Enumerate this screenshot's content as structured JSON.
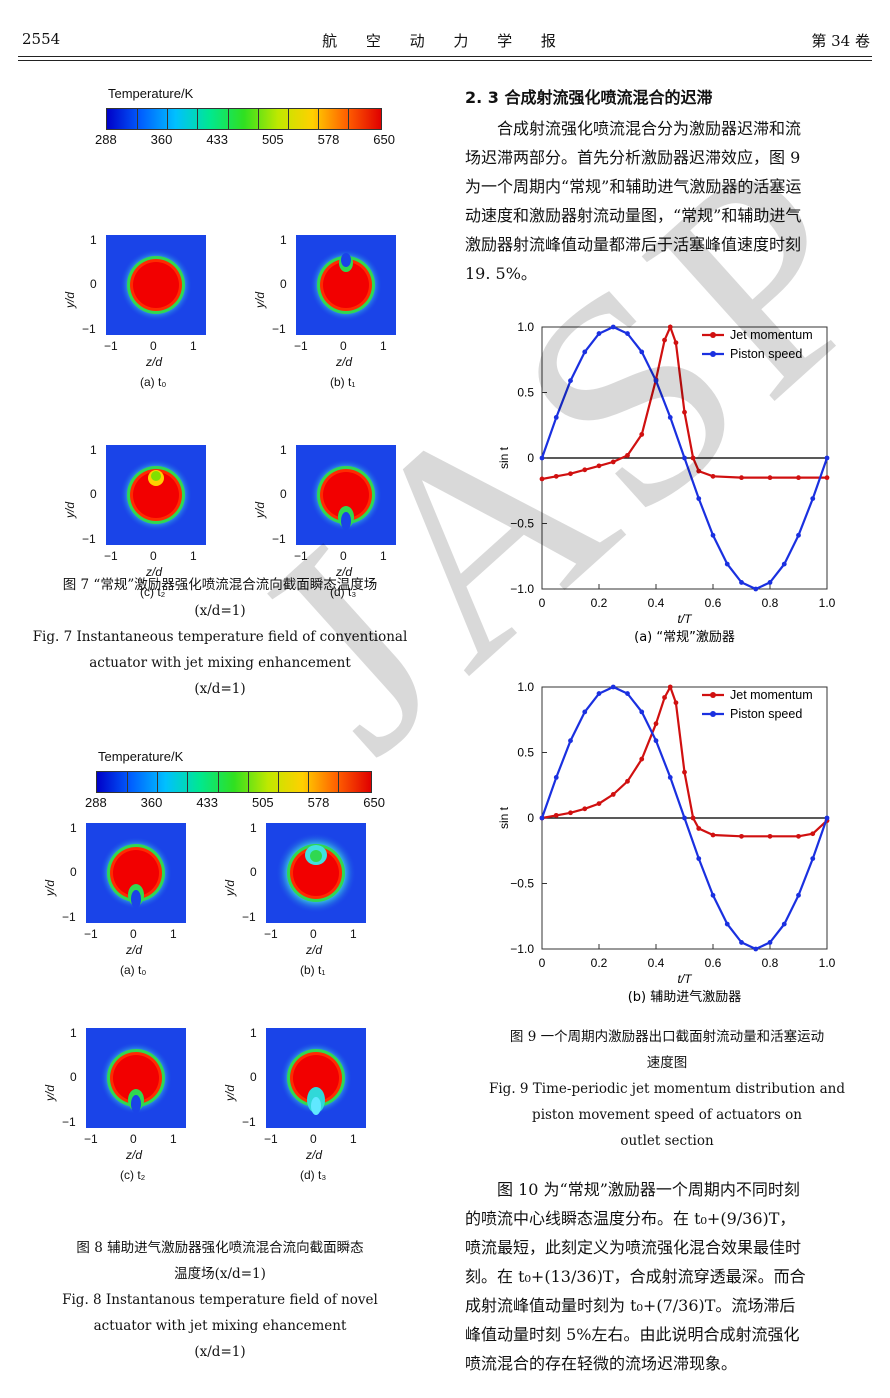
{
  "header": {
    "page_number": "2554",
    "journal": "航 空 动 力 学 报",
    "volume": "第 34 卷"
  },
  "colorbar": {
    "title": "Temperature/K",
    "ticks": [
      "288",
      "360",
      "433",
      "505",
      "578",
      "650"
    ]
  },
  "axis": {
    "y_label": "y/d",
    "x_label": "z/d",
    "ticks": [
      "−1",
      "0",
      "1"
    ]
  },
  "fig7": {
    "panels": [
      "(a) t₀",
      "(b) t₁",
      "(c) t₂",
      "(d) t₃"
    ],
    "caption_cn_1": "图 7 “常规”激励器强化喷流混合流向截面瞬态温度场",
    "caption_cn_2": "(x/d=1)",
    "caption_en_1": "Fig. 7  Instantaneous temperature field of conventional",
    "caption_en_2": "actuator with jet mixing enhancement",
    "caption_en_3": "(x/d=1)"
  },
  "fig8": {
    "panels": [
      "(a) t₀",
      "(b) t₁",
      "(c) t₂",
      "(d) t₃"
    ],
    "caption_cn_1": "图 8 辅助进气激励器强化喷流混合流向截面瞬态",
    "caption_cn_2": "温度场(x/d=1)",
    "caption_en_1": "Fig. 8  Instantanous temperature field of novel",
    "caption_en_2": "actuator with jet mixing ehancement",
    "caption_en_3": "(x/d=1)"
  },
  "section": {
    "title": "2. 3  合成射流强化喷流混合的迟滞"
  },
  "paragraph1": [
    "合成射流强化喷流混合分为激励器迟滞和流",
    "场迟滞两部分。首先分析激励器迟滞效应，图 9",
    "为一个周期内“常规”和辅助进气激励器的活塞运",
    "动速度和激励器射流动量图，“常规”和辅助进气",
    "激励器射流峰值动量都滞后于活塞峰值速度时刻",
    "19. 5%。"
  ],
  "chart_data": [
    {
      "type": "line",
      "title": "(a) “常规”激励器",
      "xlabel": "t/T",
      "ylabel": "sin t",
      "xlim": [
        0,
        1
      ],
      "ylim": [
        -1,
        1
      ],
      "xticks": [
        "0",
        "0.2",
        "0.4",
        "0.6",
        "0.8",
        "1.0"
      ],
      "yticks": [
        "1.0",
        "0.5",
        "0",
        "−0.5",
        "−1.0"
      ],
      "legend_position": "top-right",
      "series": [
        {
          "name": "Jet momentum",
          "color": "#d01010",
          "x": [
            0,
            0.05,
            0.1,
            0.15,
            0.2,
            0.25,
            0.3,
            0.35,
            0.4,
            0.43,
            0.45,
            0.47,
            0.5,
            0.53,
            0.55,
            0.6,
            0.7,
            0.8,
            0.9,
            1.0
          ],
          "y": [
            -0.16,
            -0.14,
            -0.12,
            -0.09,
            -0.06,
            -0.03,
            0.02,
            0.18,
            0.6,
            0.9,
            1.0,
            0.88,
            0.35,
            0.0,
            -0.1,
            -0.14,
            -0.15,
            -0.15,
            -0.15,
            -0.15
          ]
        },
        {
          "name": "Piston speed",
          "color": "#1a30e0",
          "x": [
            0,
            0.05,
            0.1,
            0.15,
            0.2,
            0.25,
            0.3,
            0.35,
            0.4,
            0.45,
            0.5,
            0.55,
            0.6,
            0.65,
            0.7,
            0.75,
            0.8,
            0.85,
            0.9,
            0.95,
            1.0
          ],
          "y": [
            0,
            0.31,
            0.59,
            0.81,
            0.95,
            1.0,
            0.95,
            0.81,
            0.59,
            0.31,
            0,
            -0.31,
            -0.59,
            -0.81,
            -0.95,
            -1.0,
            -0.95,
            -0.81,
            -0.59,
            -0.31,
            0
          ]
        }
      ]
    },
    {
      "type": "line",
      "title": "(b) 辅助进气激励器",
      "xlabel": "t/T",
      "ylabel": "sin t",
      "xlim": [
        0,
        1
      ],
      "ylim": [
        -1,
        1
      ],
      "xticks": [
        "0",
        "0.2",
        "0.4",
        "0.6",
        "0.8",
        "1.0"
      ],
      "yticks": [
        "1.0",
        "0.5",
        "0",
        "−0.5",
        "−1.0"
      ],
      "legend_position": "top-right",
      "series": [
        {
          "name": "Jet momentum",
          "color": "#d01010",
          "x": [
            0,
            0.05,
            0.1,
            0.15,
            0.2,
            0.25,
            0.3,
            0.35,
            0.4,
            0.43,
            0.45,
            0.47,
            0.5,
            0.53,
            0.55,
            0.6,
            0.7,
            0.8,
            0.9,
            0.95,
            1.0
          ],
          "y": [
            0.0,
            0.02,
            0.04,
            0.07,
            0.11,
            0.18,
            0.28,
            0.45,
            0.72,
            0.92,
            1.0,
            0.88,
            0.35,
            0.0,
            -0.08,
            -0.13,
            -0.14,
            -0.14,
            -0.14,
            -0.12,
            -0.02
          ]
        },
        {
          "name": "Piston speed",
          "color": "#1a30e0",
          "x": [
            0,
            0.05,
            0.1,
            0.15,
            0.2,
            0.25,
            0.3,
            0.35,
            0.4,
            0.45,
            0.5,
            0.55,
            0.6,
            0.65,
            0.7,
            0.75,
            0.8,
            0.85,
            0.9,
            0.95,
            1.0
          ],
          "y": [
            0,
            0.31,
            0.59,
            0.81,
            0.95,
            1.0,
            0.95,
            0.81,
            0.59,
            0.31,
            0,
            -0.31,
            -0.59,
            -0.81,
            -0.95,
            -1.0,
            -0.95,
            -0.81,
            -0.59,
            -0.31,
            0
          ]
        }
      ]
    }
  ],
  "fig9": {
    "caption_cn_1": "图 9  一个周期内激励器出口截面射流动量和活塞运动",
    "caption_cn_2": "速度图",
    "caption_en_1": "Fig. 9   Time-periodic jet momentum distribution and",
    "caption_en_2": "piston movement speed of actuators on",
    "caption_en_3": "outlet section"
  },
  "paragraph2": [
    "图 10 为“常规”激励器一个周期内不同时刻",
    "的喷流中心线瞬态温度分布。在 t₀+(9/36)T，",
    "喷流最短，此刻定义为喷流强化混合效果最佳时",
    "刻。在 t₀+(13/36)T，合成射流穿透最深。而合",
    "成射流峰值动量时刻为 t₀+(7/36)T。流场滞后",
    "峰值动量时刻 5%左右。由此说明合成射流强化",
    "喷流混合的存在轻微的流场迟滞现象。"
  ],
  "watermark": "JASP"
}
